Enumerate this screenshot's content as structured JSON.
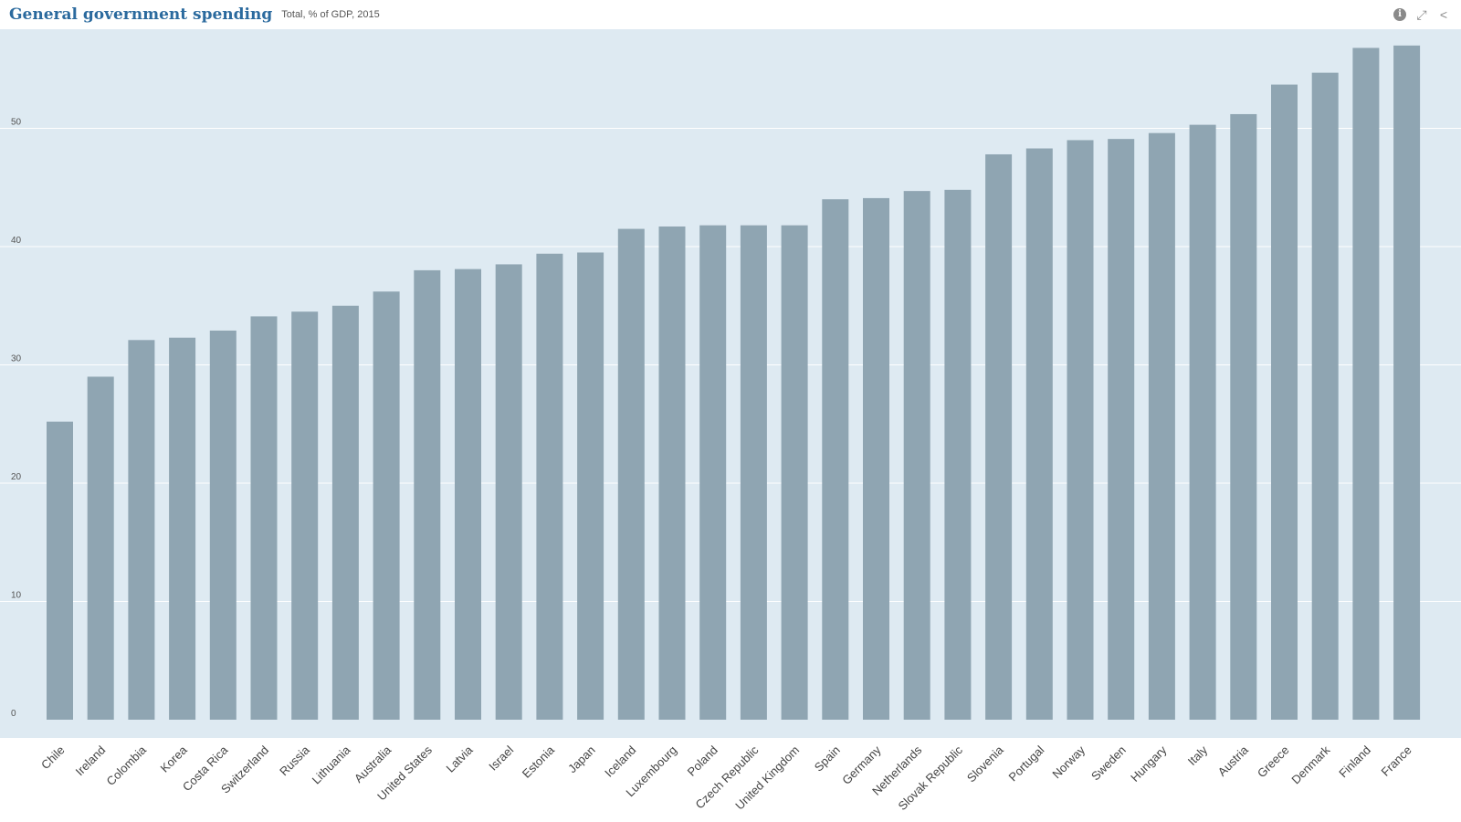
{
  "header": {
    "title": "General government spending",
    "subtitle": "Total, % of GDP, 2015"
  },
  "toolbar": {
    "info_glyph": "i",
    "expand_glyph": "⤢",
    "share_glyph": "<"
  },
  "colors": {
    "plot_background": "#deeaf2",
    "bar": "#8fa5b2",
    "gridline": "#ffffff"
  },
  "chart_data": {
    "type": "bar",
    "title": "General government spending",
    "subtitle": "Total, % of GDP, 2015",
    "ylim": [
      0,
      60
    ],
    "yticks": [
      0,
      10,
      20,
      30,
      40,
      50
    ],
    "grid": true,
    "categories": [
      "Chile",
      "Ireland",
      "Colombia",
      "Korea",
      "Costa Rica",
      "Switzerland",
      "Russia",
      "Lithuania",
      "Australia",
      "United States",
      "Latvia",
      "Israel",
      "Estonia",
      "Japan",
      "Iceland",
      "Luxembourg",
      "Poland",
      "Czech Republic",
      "United Kingdom",
      "Spain",
      "Germany",
      "Netherlands",
      "Slovak Republic",
      "Slovenia",
      "Portugal",
      "Norway",
      "Sweden",
      "Hungary",
      "Italy",
      "Austria",
      "Greece",
      "Denmark",
      "Finland",
      "France"
    ],
    "values": [
      25.2,
      29.0,
      32.1,
      32.3,
      32.9,
      34.1,
      34.5,
      35.0,
      36.2,
      38.0,
      38.1,
      38.5,
      39.4,
      39.5,
      41.5,
      41.7,
      41.8,
      41.8,
      41.8,
      44.0,
      44.1,
      44.7,
      44.8,
      47.8,
      48.3,
      49.0,
      49.1,
      49.6,
      50.3,
      51.2,
      53.7,
      54.7,
      56.8,
      57.0
    ]
  }
}
